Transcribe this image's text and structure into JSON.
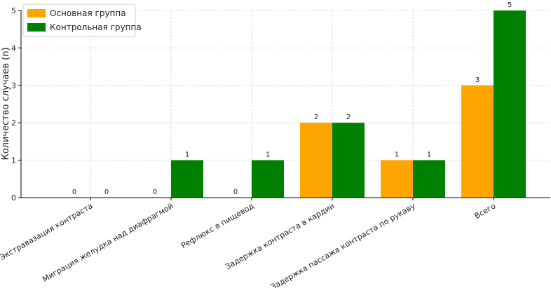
{
  "chart_data": {
    "type": "bar",
    "ylabel": "Количество случаев (n)",
    "categories": [
      "Экстравазация контраста",
      "Миграция желудка над диафрагмой",
      "Рефлюкс в пищевод",
      "Задержка контраста в кардии",
      "Задержка пассажа контраста по рукаву",
      "Всего"
    ],
    "series": [
      {
        "name": "Основная группа",
        "color": "#ffa500",
        "values": [
          0,
          0,
          0,
          2,
          1,
          3
        ]
      },
      {
        "name": "Контрольная группа",
        "color": "#008000",
        "values": [
          0,
          1,
          1,
          2,
          1,
          5
        ]
      }
    ],
    "ylim": [
      0,
      5
    ],
    "yticks": [
      0,
      1,
      2,
      3,
      4,
      5
    ],
    "grid": true,
    "legend": "upper-left",
    "data_labels": true
  }
}
